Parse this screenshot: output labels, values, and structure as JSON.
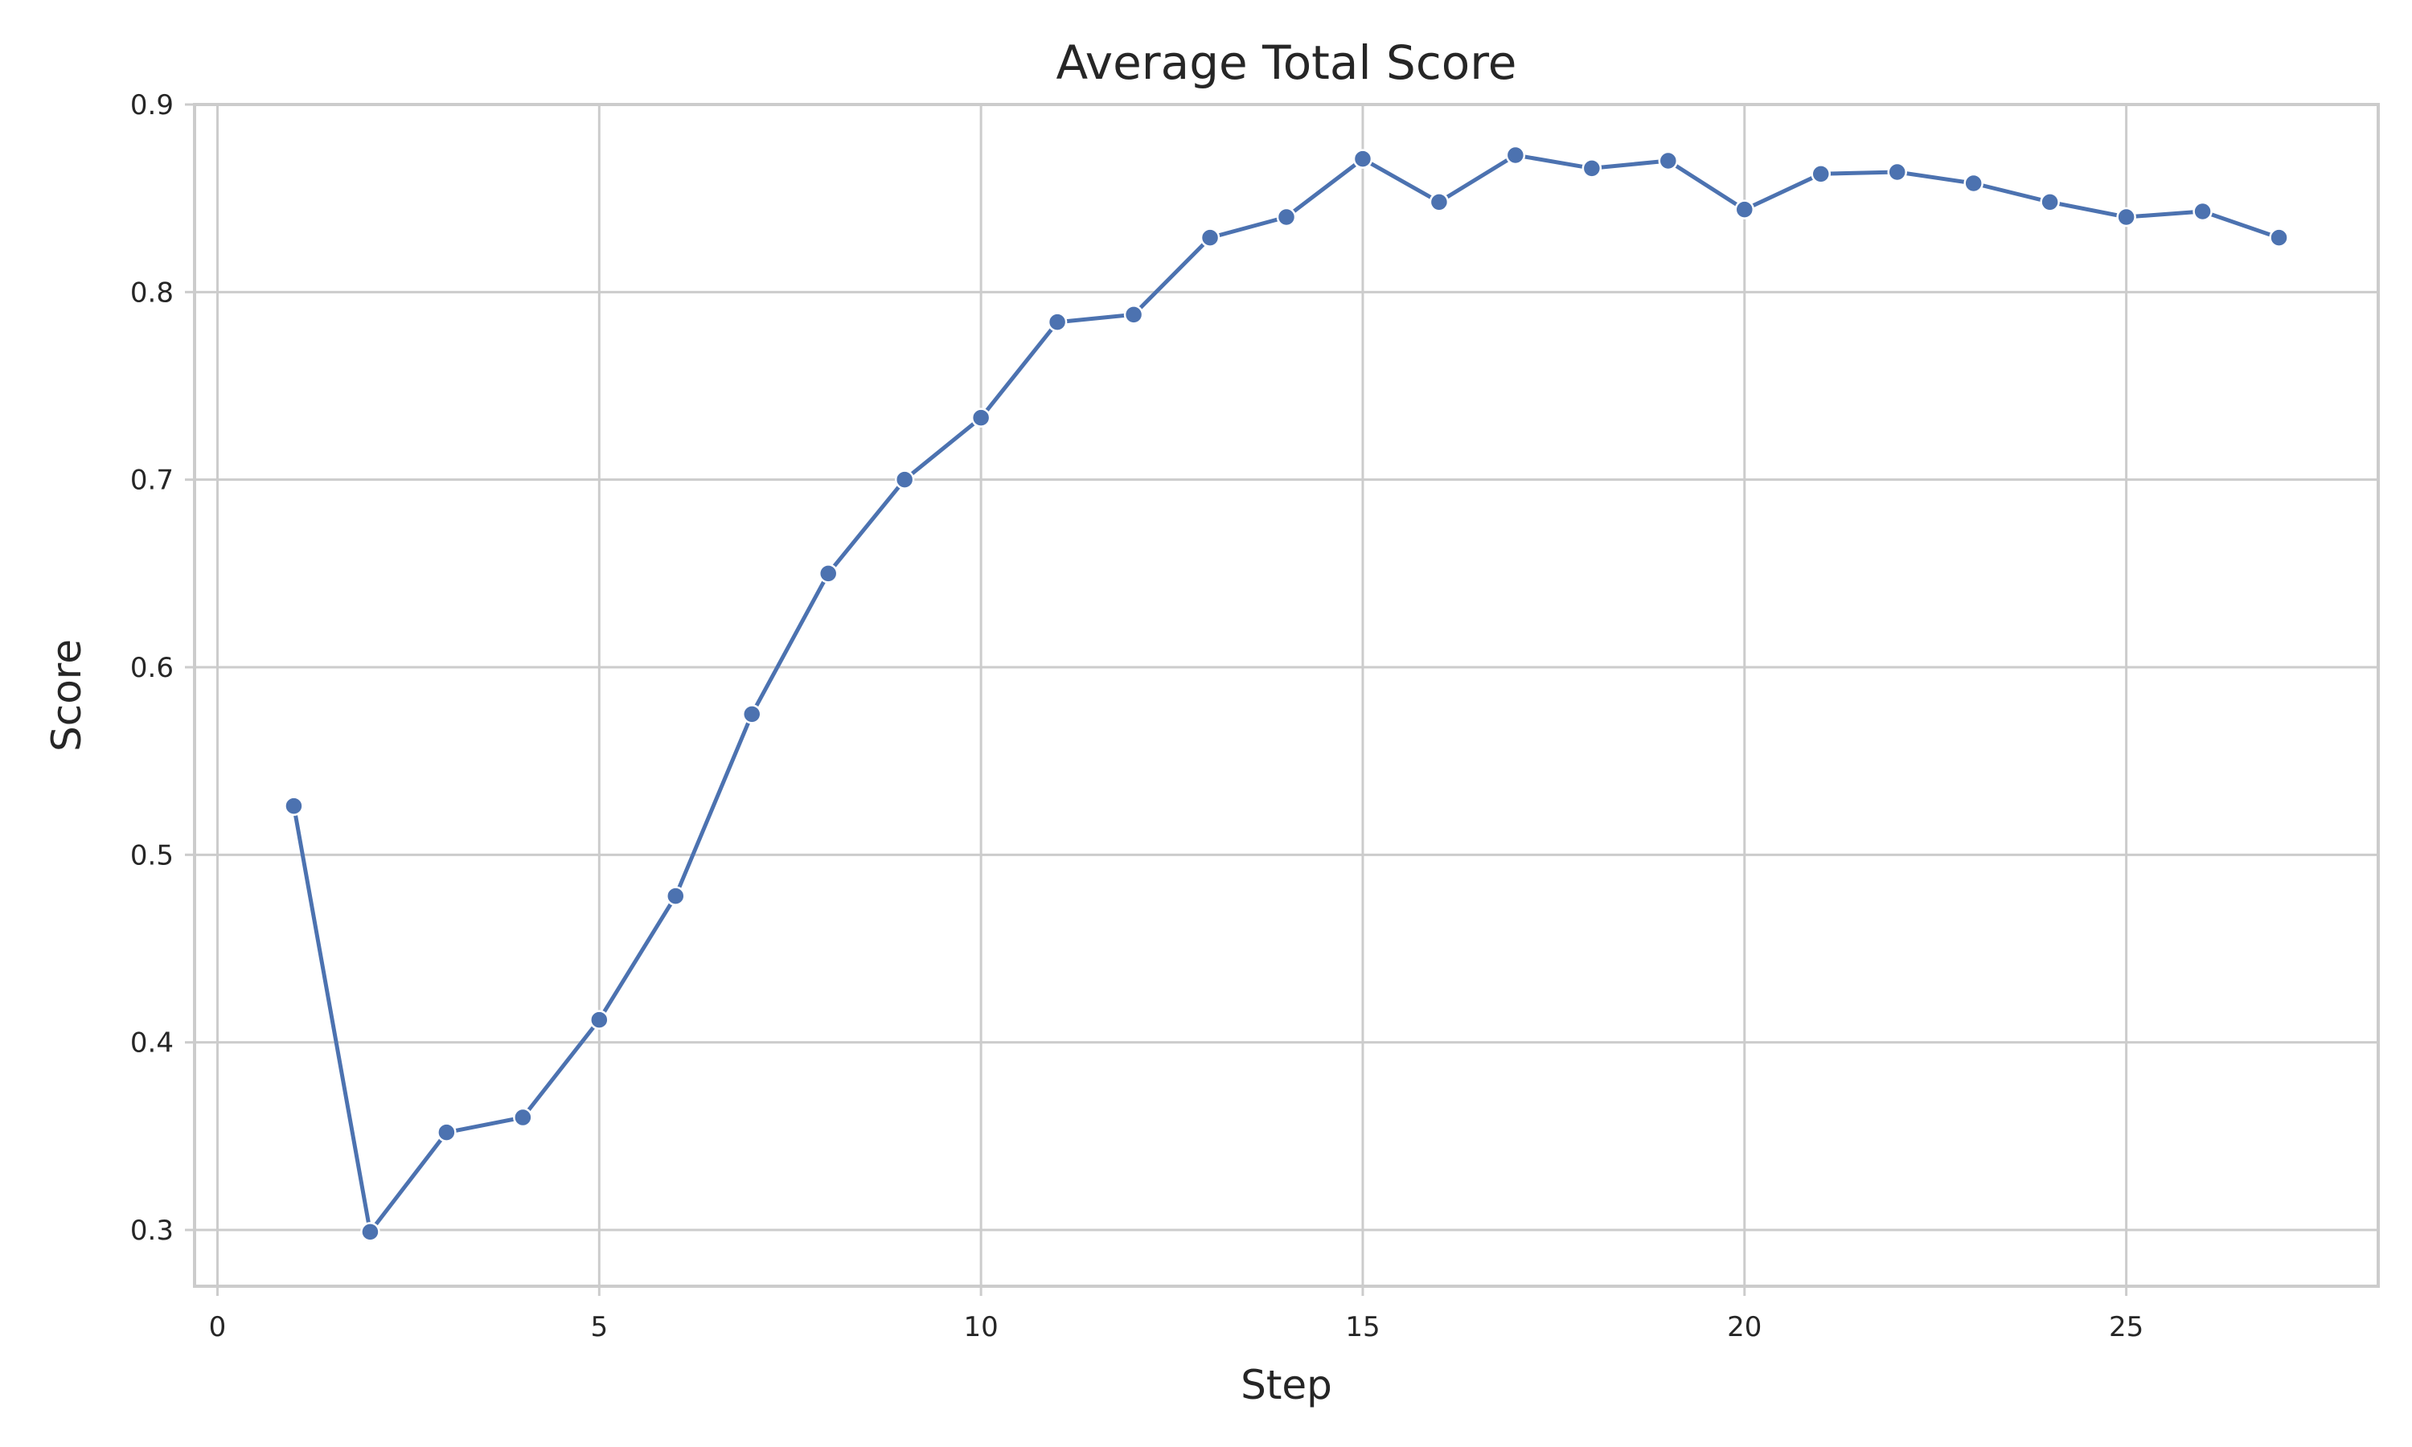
{
  "chart_data": {
    "type": "line",
    "title": "Average Total Score",
    "xlabel": "Step",
    "ylabel": "Score",
    "xlim": [
      -0.3,
      28.3
    ],
    "ylim": [
      0.27,
      0.9
    ],
    "xticks": [
      0,
      5,
      10,
      15,
      20,
      25
    ],
    "xtick_labels": [
      "0",
      "5",
      "10",
      "15",
      "20",
      "25"
    ],
    "yticks": [
      0.3,
      0.4,
      0.5,
      0.6,
      0.7,
      0.8,
      0.9
    ],
    "ytick_labels": [
      "0.3",
      "0.4",
      "0.5",
      "0.6",
      "0.7",
      "0.8",
      "0.9"
    ],
    "grid": true,
    "color": "#4c72b0",
    "series": [
      {
        "x": [
          1,
          2,
          3,
          4,
          5,
          6,
          7,
          8,
          9,
          10,
          11,
          12,
          13,
          14,
          15,
          16,
          17,
          18,
          19,
          20,
          21,
          22,
          23,
          24,
          25,
          26,
          27
        ],
        "values": [
          0.526,
          0.299,
          0.352,
          0.36,
          0.412,
          0.478,
          0.575,
          0.65,
          0.7,
          0.733,
          0.784,
          0.788,
          0.829,
          0.84,
          0.871,
          0.848,
          0.873,
          0.866,
          0.87,
          0.844,
          0.863,
          0.864,
          0.858,
          0.848,
          0.84,
          0.843,
          0.829
        ]
      }
    ]
  }
}
